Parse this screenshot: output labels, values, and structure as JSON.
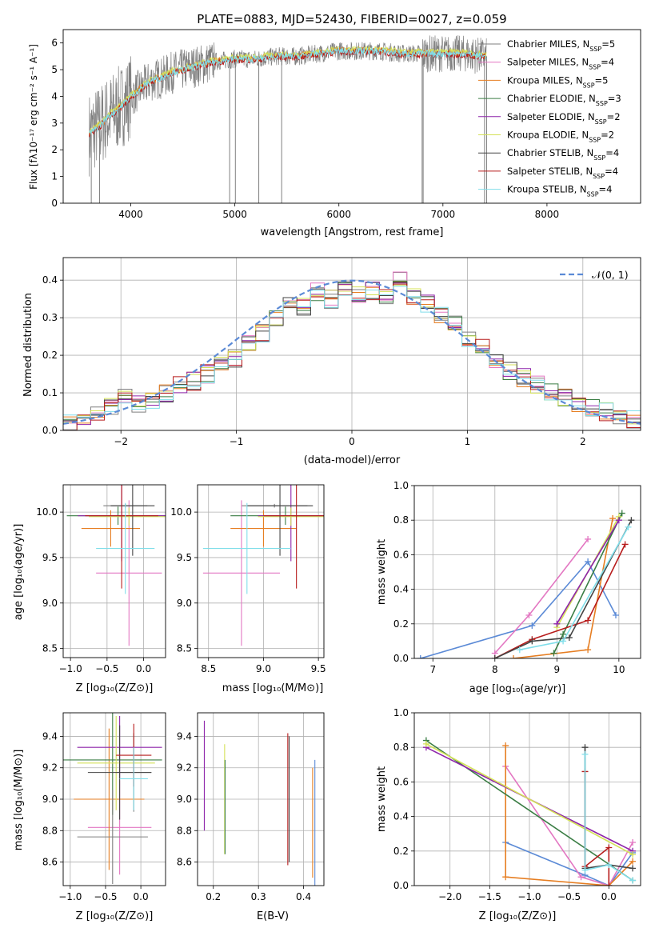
{
  "title": "PLATE=0883, MJD=52430, FIBERID=0027, z=0.059",
  "colors": {
    "chabrier_miles": "#7f7f7f",
    "salpeter_miles": "#e377c2",
    "kroupa_miles": "#e67e22",
    "chabrier_elodie": "#3a7d44",
    "salpeter_elodie": "#8e24aa",
    "kroupa_elodie": "#d4e157",
    "chabrier_stelib": "#444444",
    "salpeter_stelib": "#b71c1c",
    "kroupa_stelib": "#80deea",
    "blue": "#5b8ad6",
    "grid": "#b0b0b0"
  },
  "chart_data": [
    {
      "type": "line",
      "panel": "spectrum",
      "xlabel": "wavelength [Angstrom, rest frame]",
      "ylabel": "Flux [fλ10⁻¹⁷ erg cm⁻² s⁻¹ A⁻¹]",
      "xlim": [
        3350,
        8900
      ],
      "ylim": [
        0,
        6.5
      ],
      "xticks": [
        "4000",
        "5000",
        "6000",
        "7000",
        "8000"
      ],
      "yticks": [
        "0",
        "1",
        "2",
        "3",
        "4",
        "5",
        "6"
      ],
      "legend": [
        "Chabrier MILES, N_SSP=5",
        "Salpeter MILES, N_SSP=4",
        "Kroupa MILES, N_SSP=5",
        "Chabrier ELODIE, N_SSP=3",
        "Salpeter ELODIE, N_SSP=2",
        "Kroupa ELODIE, N_SSP=2",
        "Chabrier STELIB, N_SSP=4",
        "Salpeter STELIB, N_SSP=4",
        "Kroupa STELIB, N_SSP=4"
      ],
      "legend_position": "upper-right",
      "continuum": {
        "x": [
          3600,
          3700,
          3800,
          3900,
          4000,
          4100,
          4200,
          4300,
          4400,
          4600,
          4800,
          5000,
          5200,
          5400,
          5600,
          5800,
          6000,
          6200,
          6400,
          6600,
          6800,
          7000,
          7200,
          7400
        ],
        "y": [
          2.6,
          2.9,
          3.3,
          3.6,
          4.0,
          4.3,
          4.6,
          4.7,
          4.9,
          5.1,
          5.3,
          5.4,
          5.4,
          5.5,
          5.5,
          5.6,
          5.7,
          5.7,
          5.7,
          5.6,
          5.6,
          5.6,
          5.6,
          5.5
        ]
      }
    },
    {
      "type": "line",
      "panel": "residuals",
      "xlabel": "(data-model)/error",
      "ylabel": "Normed distribution",
      "xlim": [
        -2.5,
        2.5
      ],
      "ylim": [
        0,
        0.46
      ],
      "xticks": [
        "−2",
        "−1",
        "0",
        "1",
        "2"
      ],
      "yticks": [
        "0.0",
        "0.1",
        "0.2",
        "0.3",
        "0.4"
      ],
      "legend": [
        "𝒩(0, 1)"
      ],
      "hist_y": [
        0.02,
        0.03,
        0.05,
        0.06,
        0.09,
        0.07,
        0.08,
        0.1,
        0.12,
        0.13,
        0.15,
        0.17,
        0.19,
        0.23,
        0.26,
        0.3,
        0.34,
        0.33,
        0.37,
        0.35,
        0.38,
        0.36,
        0.37,
        0.35,
        0.4,
        0.36,
        0.34,
        0.31,
        0.28,
        0.24,
        0.22,
        0.18,
        0.16,
        0.14,
        0.12,
        0.1,
        0.09,
        0.07,
        0.06,
        0.05,
        0.04,
        0.03
      ]
    },
    {
      "type": "scatter",
      "panel": "age_vs_Z",
      "xlabel": "Z [log₁₀(Z/Z⊙)]",
      "ylabel": "age  [log₁₀(age/yr)]",
      "xlim": [
        -1.1,
        0.3
      ],
      "ylim": [
        8.4,
        10.3
      ],
      "xticks": [
        "−1.0",
        "−0.5",
        "0.0"
      ],
      "yticks": [
        "8.5",
        "9.0",
        "9.5",
        "10.0"
      ]
    },
    {
      "type": "scatter",
      "panel": "age_vs_mass",
      "xlabel": "mass [log₁₀(M/M⊙)]",
      "xlim": [
        8.4,
        9.55
      ],
      "ylim": [
        8.4,
        10.3
      ],
      "xticks": [
        "8.5",
        "9.0",
        "9.5"
      ],
      "yticks": [
        "8.5",
        "9.0",
        "9.5",
        "10.0"
      ]
    },
    {
      "type": "line",
      "panel": "massweight_vs_age",
      "xlabel": "age  [log₁₀(age/yr)]",
      "ylabel": "mass weight",
      "xlim": [
        6.7,
        10.35
      ],
      "ylim": [
        0,
        1.0
      ],
      "xticks": [
        "7",
        "8",
        "9",
        "10"
      ],
      "yticks": [
        "0.0",
        "0.2",
        "0.4",
        "0.6",
        "0.8",
        "1.0"
      ]
    },
    {
      "type": "scatter",
      "panel": "mass_vs_Z",
      "xlabel": "Z [log₁₀(Z/Z⊙)]",
      "ylabel": "mass [log₁₀(M/M⊙)]",
      "xlim": [
        -1.1,
        0.35
      ],
      "ylim": [
        8.45,
        9.55
      ],
      "xticks": [
        "−1.0",
        "−0.5",
        "0.0"
      ],
      "yticks": [
        "8.6",
        "8.8",
        "9.0",
        "9.2",
        "9.4"
      ]
    },
    {
      "type": "scatter",
      "panel": "mass_vs_ebv",
      "xlabel": "E(B-V)",
      "xlim": [
        0.165,
        0.445
      ],
      "ylim": [
        8.45,
        9.55
      ],
      "xticks": [
        "0.2",
        "0.3",
        "0.4"
      ],
      "yticks": [
        "8.6",
        "8.8",
        "9.0",
        "9.2",
        "9.4"
      ]
    },
    {
      "type": "line",
      "panel": "massweight_vs_Z",
      "xlabel": "Z [log₁₀(Z/Z⊙)]",
      "ylabel": "mass weight",
      "xlim": [
        -2.45,
        0.4
      ],
      "ylim": [
        0,
        1.0
      ],
      "xticks": [
        "−2.0",
        "−1.5",
        "−1.0",
        "−0.5",
        "0.0"
      ],
      "yticks": [
        "0.0",
        "0.2",
        "0.4",
        "0.6",
        "0.8",
        "1.0"
      ]
    }
  ]
}
